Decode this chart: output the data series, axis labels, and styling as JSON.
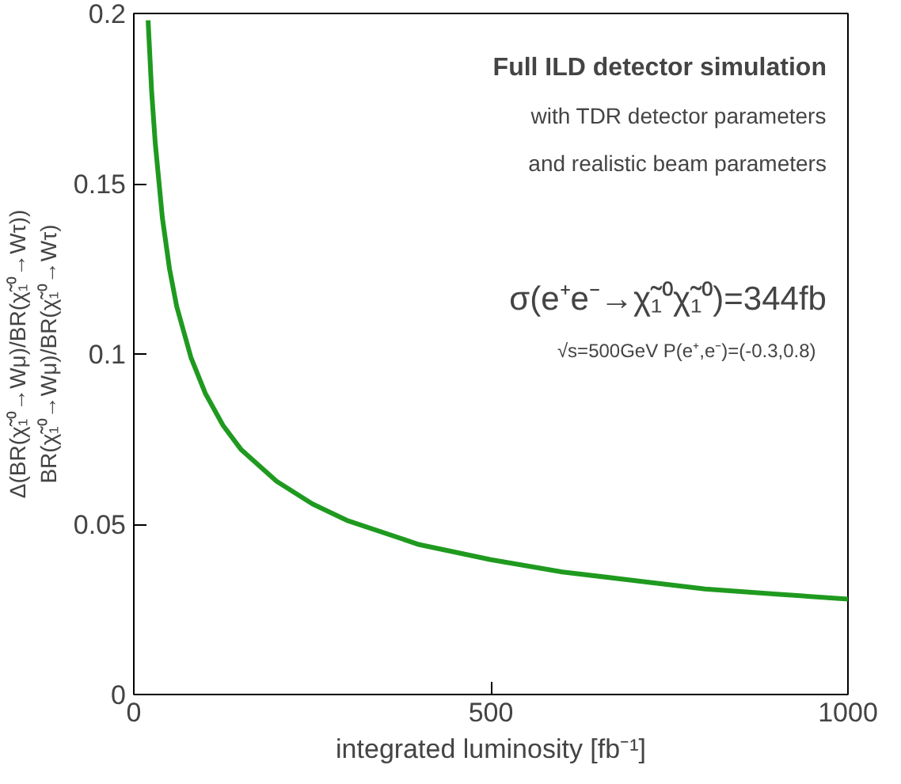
{
  "chart_data": {
    "type": "line",
    "xlabel": "integrated luminosity [fb⁻¹]",
    "ylabel": "Δ(BR(χ̃₁⁰→Wμ)/BR(χ̃₁⁰→Wτ))\nBR(χ̃₁⁰→Wμ)/BR(χ̃₁⁰→Wτ)",
    "x": [
      20,
      25,
      30,
      40,
      50,
      60,
      80,
      100,
      125,
      150,
      200,
      250,
      300,
      400,
      500,
      600,
      700,
      800,
      900,
      1000
    ],
    "series": [
      {
        "color": "#1f9a1f",
        "values": [
          0.198,
          0.177,
          0.162,
          0.14,
          0.125,
          0.114,
          0.099,
          0.0885,
          0.079,
          0.072,
          0.0626,
          0.056,
          0.051,
          0.044,
          0.0396,
          0.036,
          0.0335,
          0.031,
          0.0295,
          0.028
        ]
      }
    ],
    "xlim": [
      0,
      1000
    ],
    "ylim": [
      0,
      0.2
    ],
    "xticks": [
      0,
      500,
      1000
    ],
    "yticks": [
      0,
      0.05,
      0.1,
      0.15,
      0.2
    ],
    "grid": false,
    "marker": "none",
    "line_style": "solid",
    "annotations": [
      "Full ILD detector simulation",
      "with TDR detector parameters",
      "and realistic beam parameters",
      "σ(e⁺e⁻→χ̃₁⁰χ̃₁⁰)=344fb",
      "√s=500GeV   P(e⁺,e⁻)=(-0.3,0.8)"
    ]
  }
}
